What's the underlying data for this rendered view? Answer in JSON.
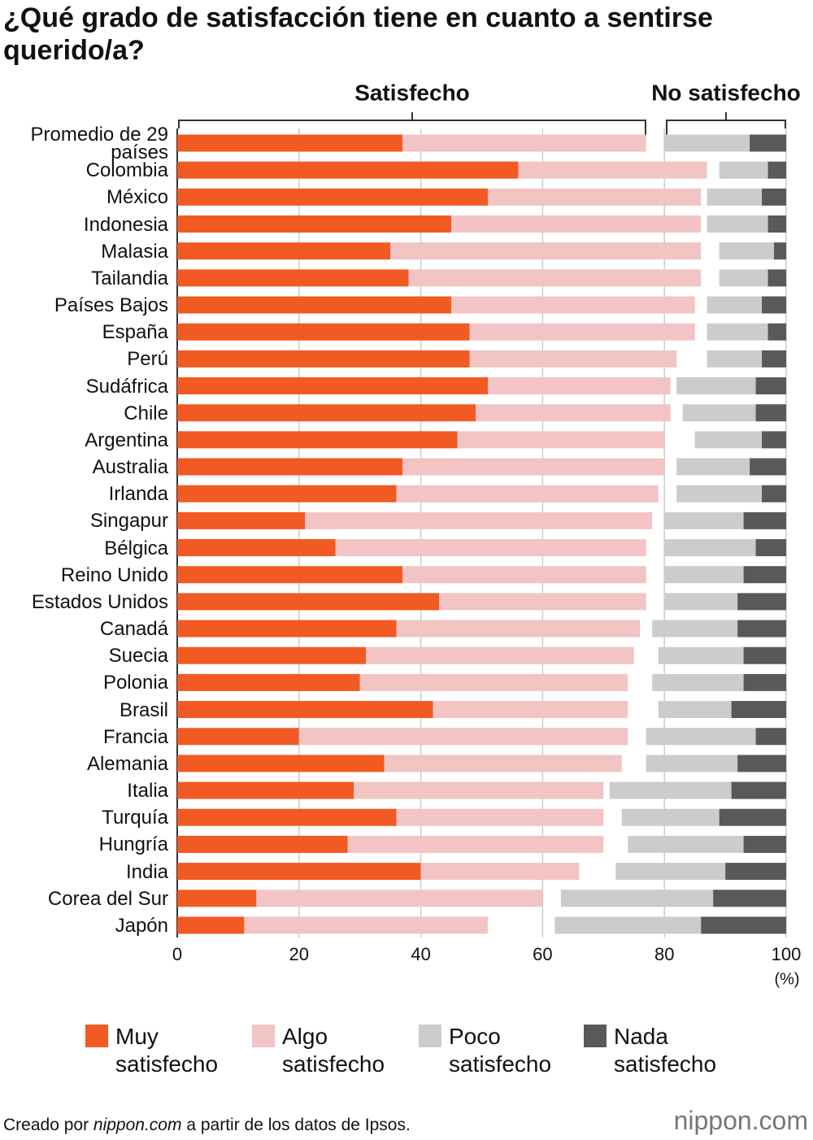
{
  "chart_data": {
    "type": "bar",
    "orientation": "horizontal",
    "title": "¿Qué grado de satisfacción tiene en cuanto a sentirse querido/a?",
    "group_labels": [
      "Satisfecho",
      "No satisfecho"
    ],
    "categories": [
      "Promedio de 29 países",
      "Colombia",
      "México",
      "Indonesia",
      "Malasia",
      "Tailandia",
      "Países Bajos",
      "España",
      "Perú",
      "Sudáfrica",
      "Chile",
      "Argentina",
      "Australia",
      "Irlanda",
      "Singapur",
      "Bélgica",
      "Reino Unido",
      "Estados Unidos",
      "Canadá",
      "Suecia",
      "Polonia",
      "Brasil",
      "Francia",
      "Alemania",
      "Italia",
      "Turquía",
      "Hungría",
      "India",
      "Corea del Sur",
      "Japón"
    ],
    "series": [
      {
        "name": "Muy satisfecho",
        "color": "#f15a22",
        "align": "left",
        "values": [
          37,
          56,
          51,
          45,
          35,
          38,
          45,
          48,
          48,
          51,
          49,
          46,
          37,
          36,
          21,
          26,
          37,
          43,
          36,
          31,
          30,
          42,
          20,
          34,
          29,
          36,
          28,
          40,
          13,
          11
        ]
      },
      {
        "name": "Algo satisfecho",
        "color": "#f2c4c4",
        "align": "left",
        "values": [
          40,
          31,
          35,
          41,
          51,
          48,
          40,
          37,
          34,
          30,
          32,
          34,
          43,
          43,
          57,
          51,
          40,
          34,
          40,
          44,
          44,
          32,
          54,
          39,
          41,
          34,
          42,
          26,
          47,
          40
        ]
      },
      {
        "name": "Poco satisfecho",
        "color": "#cccccc",
        "align": "right",
        "values": [
          14,
          8,
          9,
          10,
          9,
          8,
          9,
          10,
          9,
          13,
          12,
          11,
          12,
          14,
          13,
          15,
          13,
          12,
          14,
          14,
          15,
          12,
          18,
          15,
          20,
          16,
          19,
          18,
          25,
          24
        ]
      },
      {
        "name": "Nada satisfecho",
        "color": "#595959",
        "align": "right",
        "values": [
          6,
          3,
          4,
          3,
          2,
          3,
          4,
          3,
          4,
          5,
          5,
          4,
          6,
          4,
          7,
          5,
          7,
          8,
          8,
          7,
          7,
          9,
          5,
          8,
          9,
          11,
          7,
          10,
          12,
          14
        ]
      }
    ],
    "xlim": [
      0,
      100
    ],
    "xticks": [
      0,
      20,
      40,
      60,
      80,
      100
    ],
    "x_unit": "(%)",
    "grid": true
  },
  "footer": {
    "prefix": "Creado por",
    "site": "nippon.com",
    "suffix": "a partir de los datos de Ipsos.",
    "logo": "nippon.com"
  }
}
